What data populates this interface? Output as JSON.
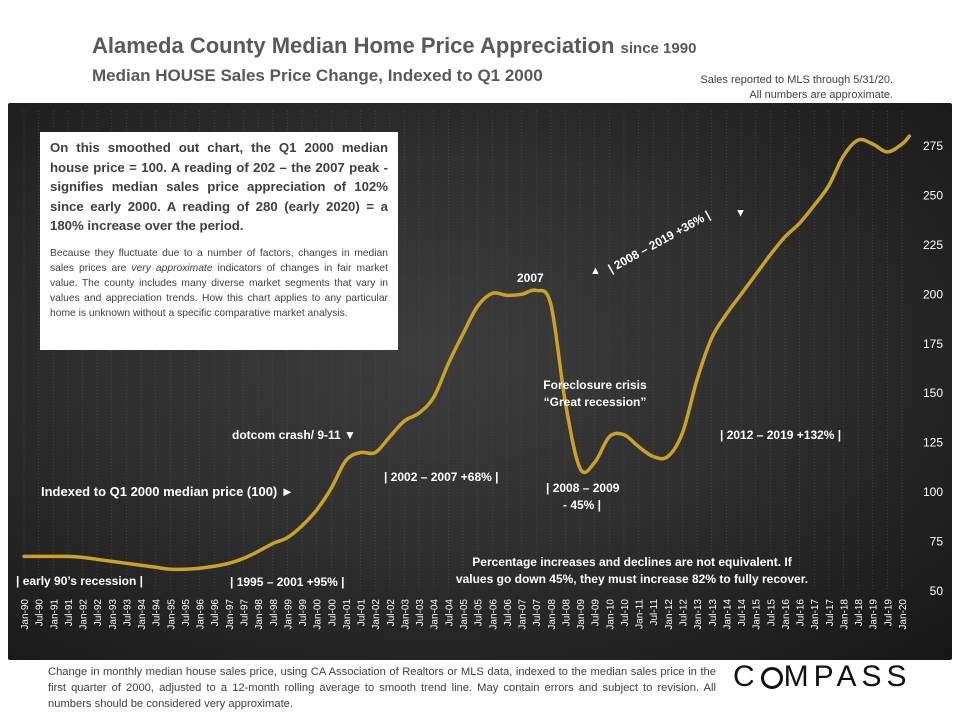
{
  "header": {
    "title": "Alameda County Median Home Price Appreciation",
    "title_suffix": "since 1990",
    "subtitle": "Median HOUSE Sales Price Change, Indexed to Q1 2000",
    "note_line1": "Sales reported to MLS through 5/31/20.",
    "note_line2": "All numbers are approximate."
  },
  "infobox": {
    "paragraph1": "On this smoothed out chart, the Q1 2000 median house price = 100. A reading of 202 – the 2007 peak - signifies median sales price appreciation of 102% since early 2000.  A reading of 280 (early 2020) = a 180% increase over the period.",
    "paragraph2_before": "Because they fluctuate due to a number of factors, changes in median sales prices are ",
    "paragraph2_emphasis": "very approximate",
    "paragraph2_after": " indicators of changes in fair market value. The county includes many diverse market segments that vary in values and appreciation trends. How this chart applies to any particular home is unknown without a specific comparative market analysis."
  },
  "footer": {
    "note": "Change in monthly median house sales price, using CA Association of Realtors or MLS data, indexed to the median sales price in the first quarter of 2000, adjusted to a 12-month rolling average to smooth trend line.  May contain errors and subject to revision. All numbers should be considered very approximate.",
    "logo": "COMPASS"
  },
  "colors": {
    "line": "#c9a227",
    "text_on_dark": "#ffffff",
    "axis_text": "#ffffff",
    "grid": "#555555"
  },
  "chart_data": {
    "type": "line",
    "ylim": [
      50,
      285
    ],
    "yticks": [
      50,
      75,
      100,
      125,
      150,
      175,
      200,
      225,
      250,
      275
    ],
    "grid": "vertical",
    "x_tick_labels": [
      "Jan-90",
      "Jul-90",
      "Jan-91",
      "Jul-91",
      "Jan-92",
      "Jul-92",
      "Jan-93",
      "Jul-93",
      "Jan-94",
      "Jul-94",
      "Jan-95",
      "Jul-95",
      "Jan-96",
      "Jul-96",
      "Jan-97",
      "Jul-97",
      "Jan-98",
      "Jul-98",
      "Jan-99",
      "Jul-99",
      "Jan-00",
      "Jul-00",
      "Jan-01",
      "Jul-01",
      "Jan-02",
      "Jul-02",
      "Jan-03",
      "Jul-03",
      "Jan-04",
      "Jul-04",
      "Jan-05",
      "Jul-05",
      "Jan-06",
      "Jul-06",
      "Jan-07",
      "Jul-07",
      "Jan-08",
      "Jul-08",
      "Jan-09",
      "Jul-09",
      "Jan-10",
      "Jul-10",
      "Jan-11",
      "Jul-11",
      "Jan-12",
      "Jul-12",
      "Jan-13",
      "Jul-13",
      "Jan-14",
      "Jul-14",
      "Jan-15",
      "Jul-15",
      "Jan-16",
      "Jul-16",
      "Jan-17",
      "Jul-17",
      "Jan-18",
      "Jul-18",
      "Jan-19",
      "Jul-19",
      "Jan-20"
    ],
    "series": [
      {
        "x": [
          "Jan-90",
          "Jul-90",
          "Jan-91",
          "Jul-91",
          "Jan-92",
          "Jul-92",
          "Jan-93",
          "Jul-93",
          "Jan-94",
          "Jul-94",
          "Jan-95",
          "Jul-95",
          "Jan-96",
          "Jul-96",
          "Jan-97",
          "Jul-97",
          "Jan-98",
          "Jul-98",
          "Jan-99",
          "Jul-99",
          "Jan-00",
          "Jul-00",
          "Jan-01",
          "Jul-01",
          "Jan-02",
          "Jul-02",
          "Jan-03",
          "Jul-03",
          "Jan-04",
          "Jul-04",
          "Jan-05",
          "Jul-05",
          "Jan-06",
          "Jul-06",
          "Jan-07",
          "Jul-07",
          "Jan-08",
          "Jul-08",
          "Jan-09",
          "Jul-09",
          "Jan-10",
          "Jul-10",
          "Jan-11",
          "Jul-11",
          "Jan-12",
          "Jul-12",
          "Jan-13",
          "Jul-13",
          "Jan-14",
          "Jul-14",
          "Jan-15",
          "Jul-15",
          "Jan-16",
          "Jul-16",
          "Jan-17",
          "Jul-17",
          "Jan-18",
          "Jul-18",
          "Jan-19",
          "Jul-19",
          "Jan-20",
          "Apr-20"
        ],
        "values": [
          67.5,
          67.5,
          67.5,
          67.5,
          67,
          66,
          65,
          64,
          63,
          62,
          61,
          61,
          61.5,
          62.5,
          64,
          66.5,
          70,
          74,
          77,
          83,
          91,
          102,
          116,
          120,
          120,
          128,
          136,
          140,
          148,
          165,
          180,
          194,
          200.5,
          199.5,
          200,
          202,
          195,
          145,
          112,
          115,
          128,
          129,
          123,
          118,
          118,
          130,
          157,
          178,
          190,
          200,
          210,
          220,
          229,
          236,
          245,
          255,
          270,
          278,
          276,
          272,
          276,
          280
        ]
      }
    ],
    "annotations": {
      "early90s": "| early 90’s recession |",
      "indexed": "Indexed to Q1 2000 median price (100) ►",
      "dotcom": "dotcom crash/ 9-11 ▼",
      "range_1995": "| 1995 – 2001 +95% |",
      "range_2002": "| 2002 – 2007 +68% |",
      "peak2007": "2007",
      "foreclosure_line1": "Foreclosure crisis",
      "foreclosure_line2": "“Great recession”",
      "range_2008_line1": "| 2008 – 2009",
      "range_2008_line2": "- 45% |",
      "range_2012": "| 2012 – 2019 +132% |",
      "range_2008_2019": "| 2008 – 2019 +36% |",
      "arrow_up": "▲",
      "arrow_down": "▲",
      "pct_note_line1": "Percentage increases and declines are not equivalent. If",
      "pct_note_line2": "values go down 45%, they must increase 82% to fully recover."
    }
  }
}
